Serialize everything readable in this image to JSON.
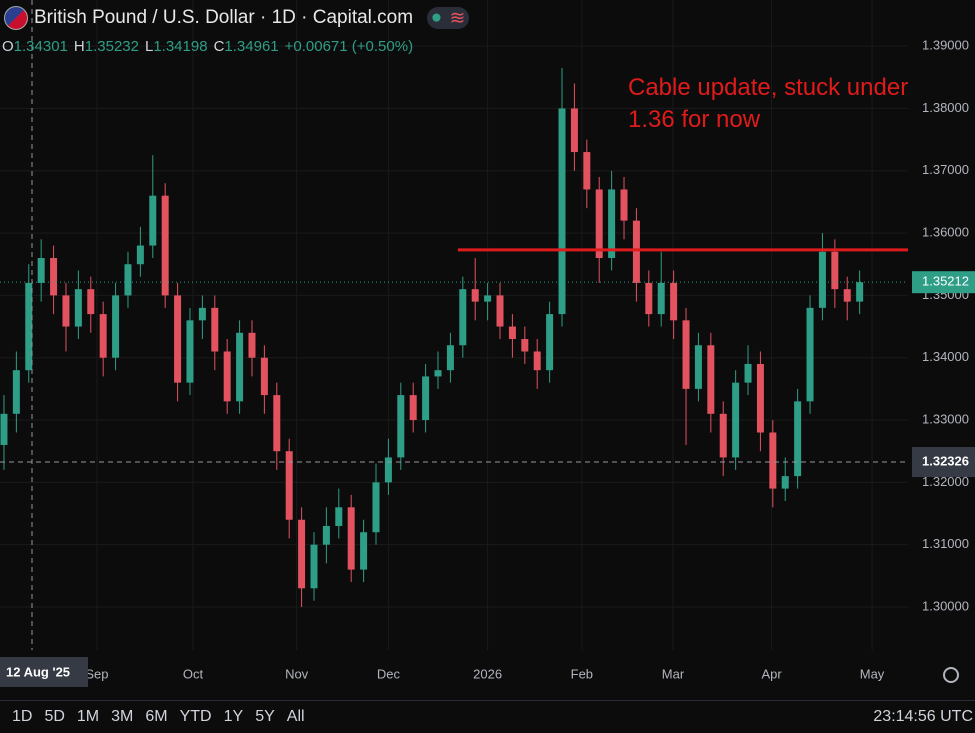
{
  "header": {
    "title": "British Pound / U.S. Dollar · 1D · Capital.com",
    "ohlc": [
      {
        "key": "O",
        "val": "1.34301"
      },
      {
        "key": "H",
        "val": "1.35232"
      },
      {
        "key": "L",
        "val": "1.34198"
      },
      {
        "key": "C",
        "val": "1.34961"
      }
    ],
    "change": "+0.00671 (+0.50%)"
  },
  "chart_data": {
    "type": "candlestick",
    "up_color": "#2e9e87",
    "down_color": "#e2525f",
    "open": [
      1.326,
      1.331,
      1.338,
      1.352,
      1.356,
      1.35,
      1.345,
      1.351,
      1.347,
      1.34,
      1.35,
      1.355,
      1.358,
      1.366,
      1.35,
      1.336,
      1.346,
      1.348,
      1.341,
      1.333,
      1.344,
      1.34,
      1.334,
      1.325,
      1.314,
      1.303,
      1.31,
      1.313,
      1.316,
      1.306,
      1.312,
      1.32,
      1.324,
      1.334,
      1.33,
      1.337,
      1.338,
      1.342,
      1.351,
      1.349,
      1.35,
      1.345,
      1.343,
      1.341,
      1.338,
      1.347,
      1.38,
      1.373,
      1.367,
      1.356,
      1.367,
      1.362,
      1.352,
      1.347,
      1.352,
      1.346,
      1.335,
      1.342,
      1.331,
      1.324,
      1.336,
      1.339,
      1.328,
      1.319,
      1.321,
      1.333,
      1.348,
      1.357,
      1.351,
      1.349
    ],
    "high": [
      1.334,
      1.341,
      1.355,
      1.359,
      1.358,
      1.352,
      1.354,
      1.353,
      1.349,
      1.352,
      1.357,
      1.361,
      1.3725,
      1.368,
      1.352,
      1.348,
      1.35,
      1.35,
      1.343,
      1.346,
      1.346,
      1.342,
      1.336,
      1.327,
      1.316,
      1.312,
      1.316,
      1.319,
      1.318,
      1.314,
      1.323,
      1.327,
      1.336,
      1.336,
      1.339,
      1.341,
      1.344,
      1.353,
      1.356,
      1.352,
      1.352,
      1.347,
      1.345,
      1.343,
      1.349,
      1.3865,
      1.384,
      1.375,
      1.369,
      1.37,
      1.369,
      1.364,
      1.354,
      1.357,
      1.354,
      1.348,
      1.344,
      1.344,
      1.333,
      1.338,
      1.342,
      1.341,
      1.33,
      1.324,
      1.335,
      1.35,
      1.36,
      1.359,
      1.353,
      1.354
    ],
    "low": [
      1.322,
      1.328,
      1.336,
      1.349,
      1.347,
      1.341,
      1.343,
      1.344,
      1.337,
      1.338,
      1.348,
      1.353,
      1.356,
      1.348,
      1.333,
      1.334,
      1.343,
      1.338,
      1.331,
      1.331,
      1.337,
      1.331,
      1.322,
      1.311,
      1.3,
      1.301,
      1.307,
      1.311,
      1.304,
      1.304,
      1.31,
      1.318,
      1.322,
      1.328,
      1.328,
      1.335,
      1.336,
      1.34,
      1.346,
      1.346,
      1.343,
      1.34,
      1.339,
      1.335,
      1.336,
      1.345,
      1.37,
      1.364,
      1.352,
      1.354,
      1.359,
      1.349,
      1.345,
      1.345,
      1.343,
      1.326,
      1.333,
      1.328,
      1.321,
      1.322,
      1.334,
      1.325,
      1.316,
      1.317,
      1.319,
      1.331,
      1.346,
      1.348,
      1.346,
      1.347
    ],
    "close": [
      1.331,
      1.338,
      1.352,
      1.356,
      1.35,
      1.345,
      1.351,
      1.347,
      1.34,
      1.35,
      1.355,
      1.358,
      1.366,
      1.35,
      1.336,
      1.346,
      1.348,
      1.341,
      1.333,
      1.344,
      1.34,
      1.334,
      1.325,
      1.314,
      1.303,
      1.31,
      1.313,
      1.316,
      1.306,
      1.312,
      1.32,
      1.324,
      1.334,
      1.33,
      1.337,
      1.338,
      1.342,
      1.351,
      1.349,
      1.35,
      1.345,
      1.343,
      1.341,
      1.338,
      1.347,
      1.38,
      1.373,
      1.367,
      1.356,
      1.367,
      1.362,
      1.352,
      1.347,
      1.352,
      1.346,
      1.335,
      1.342,
      1.331,
      1.324,
      1.336,
      1.339,
      1.328,
      1.319,
      1.321,
      1.333,
      1.348,
      1.357,
      1.351,
      1.349,
      1.35212
    ],
    "xlim": [
      -0.32,
      72.9
    ],
    "xticks": [
      {
        "value": 7.5,
        "label": "Sep"
      },
      {
        "value": 15.24,
        "label": "Oct"
      },
      {
        "value": 23.6,
        "label": "Nov"
      },
      {
        "value": 31,
        "label": "Dec"
      },
      {
        "value": 39,
        "label": "2026"
      },
      {
        "value": 46.6,
        "label": "Feb"
      },
      {
        "value": 53.95,
        "label": "Mar"
      },
      {
        "value": 61.9,
        "label": "Apr"
      },
      {
        "value": 70,
        "label": "May"
      }
    ],
    "ylim": [
      1.2931,
      1.3974
    ],
    "yticks": [
      {
        "value": 1.3,
        "label": "1.30000"
      },
      {
        "value": 1.31,
        "label": "1.31000"
      },
      {
        "value": 1.32,
        "label": "1.32000"
      },
      {
        "value": 1.33,
        "label": "1.33000"
      },
      {
        "value": 1.34,
        "label": "1.34000"
      },
      {
        "value": 1.35,
        "label": "1.35000"
      },
      {
        "value": 1.36,
        "label": "1.36000"
      },
      {
        "value": 1.37,
        "label": "1.37000"
      },
      {
        "value": 1.38,
        "label": "1.38000"
      },
      {
        "value": 1.39,
        "label": "1.39000"
      }
    ],
    "last_price": 1.35212,
    "crosshair_y": 1.32326,
    "crosshair_x": {
      "value": 2.26,
      "label": "12 Aug '25"
    },
    "hline": {
      "value": 1.3573,
      "from": 36.6,
      "color": "#e01b1b"
    },
    "annotation": "Cable update, stuck under 1.36 for now"
  },
  "toolbar": {
    "ranges": [
      "1D",
      "5D",
      "1M",
      "3M",
      "6M",
      "YTD",
      "1Y",
      "5Y",
      "All"
    ],
    "clock": "23:14:56 UTC"
  }
}
